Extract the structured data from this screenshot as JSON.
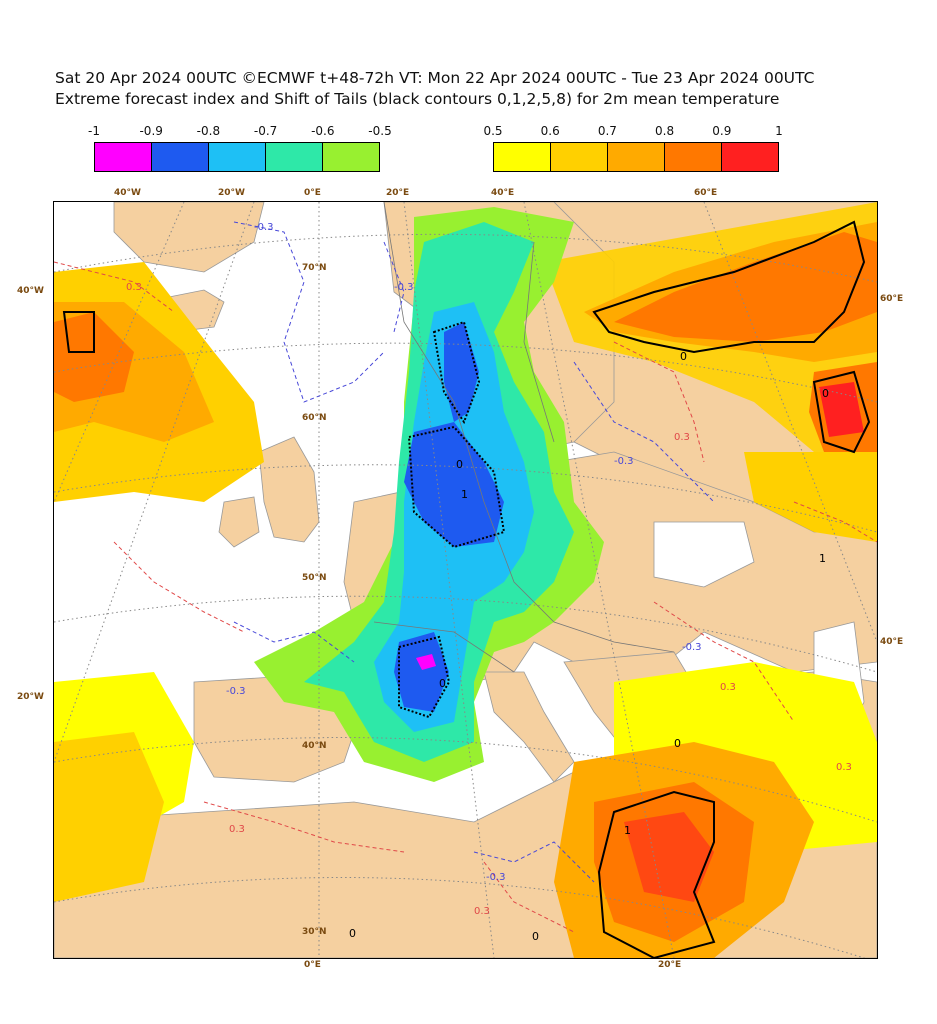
{
  "title": {
    "line1": "Sat 20 Apr 2024 00UTC ©ECMWF t+48-72h  VT: Mon 22 Apr 2024 00UTC - Tue 23 Apr 2024 00UTC",
    "line2": "Extreme forecast index and Shift of Tails (black contours 0,1,2,5,8) for 2m mean temperature"
  },
  "legend_cold": {
    "ticks": [
      "-1",
      "-0.9",
      "-0.8",
      "-0.7",
      "-0.6",
      "-0.5"
    ],
    "colors": [
      "#ff00ff",
      "#1e5af0",
      "#1ec0f5",
      "#2ee8a8",
      "#98f030"
    ]
  },
  "legend_warm": {
    "ticks": [
      "0.5",
      "0.6",
      "0.7",
      "0.8",
      "0.9",
      "1"
    ],
    "colors": [
      "#ffff00",
      "#ffd000",
      "#ffaa00",
      "#ff7800",
      "#ff2020"
    ]
  },
  "axis_labels": {
    "top": [
      "40°W",
      "20°W",
      "0°E",
      "20°E",
      "40°E",
      "60°E"
    ],
    "left": [
      "40°W",
      "20°W"
    ],
    "right": [
      "60°E",
      "40°E"
    ],
    "bottom": [
      "0°E",
      "20°E"
    ],
    "lat": [
      "70°N",
      "60°N",
      "50°N",
      "40°N",
      "30°N"
    ]
  },
  "contour_labels": {
    "sot": [
      "0",
      "0",
      "0",
      "1",
      "1",
      "0",
      "0",
      "0",
      "1",
      "0"
    ],
    "efi": [
      "-0.3",
      "-0.3",
      "-0.3",
      "-0.3",
      "0.3",
      "0.3",
      "0.3",
      "-0.3",
      "-0.3",
      "0.3",
      "0.3",
      "0.3"
    ]
  },
  "colors": {
    "land": "#f5d0a0",
    "sea": "#ffffff",
    "coast": "#888888"
  }
}
